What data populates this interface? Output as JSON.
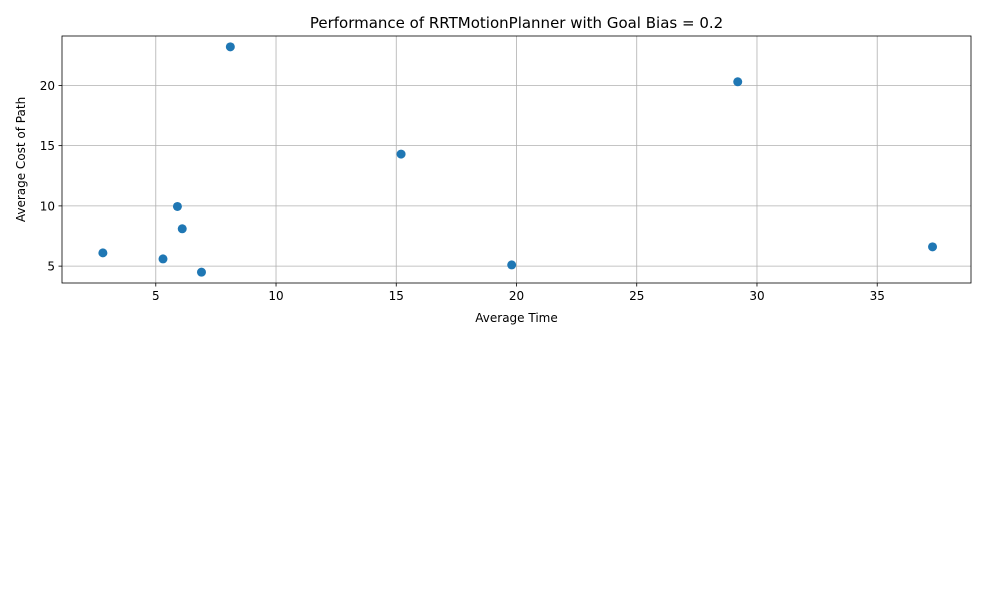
{
  "chart_data": {
    "type": "scatter",
    "title": "Performance of RRTMotionPlanner with Goal Bias = 0.2",
    "xlabel": "Average Time",
    "ylabel": "Average Cost of Path",
    "xlim": [
      1.1,
      38.9
    ],
    "ylim": [
      3.6,
      24.1
    ],
    "xticks": [
      5,
      10,
      15,
      20,
      25,
      30,
      35
    ],
    "yticks": [
      5,
      10,
      15,
      20
    ],
    "grid": true,
    "legend": "none",
    "marker_color": "#1f77b4",
    "points": [
      {
        "x": 2.8,
        "y": 6.1
      },
      {
        "x": 5.3,
        "y": 5.6
      },
      {
        "x": 5.9,
        "y": 9.95
      },
      {
        "x": 6.1,
        "y": 8.1
      },
      {
        "x": 6.9,
        "y": 4.5
      },
      {
        "x": 8.1,
        "y": 23.2
      },
      {
        "x": 15.2,
        "y": 14.3
      },
      {
        "x": 19.8,
        "y": 5.1
      },
      {
        "x": 29.2,
        "y": 20.3
      },
      {
        "x": 37.3,
        "y": 6.6
      }
    ]
  }
}
